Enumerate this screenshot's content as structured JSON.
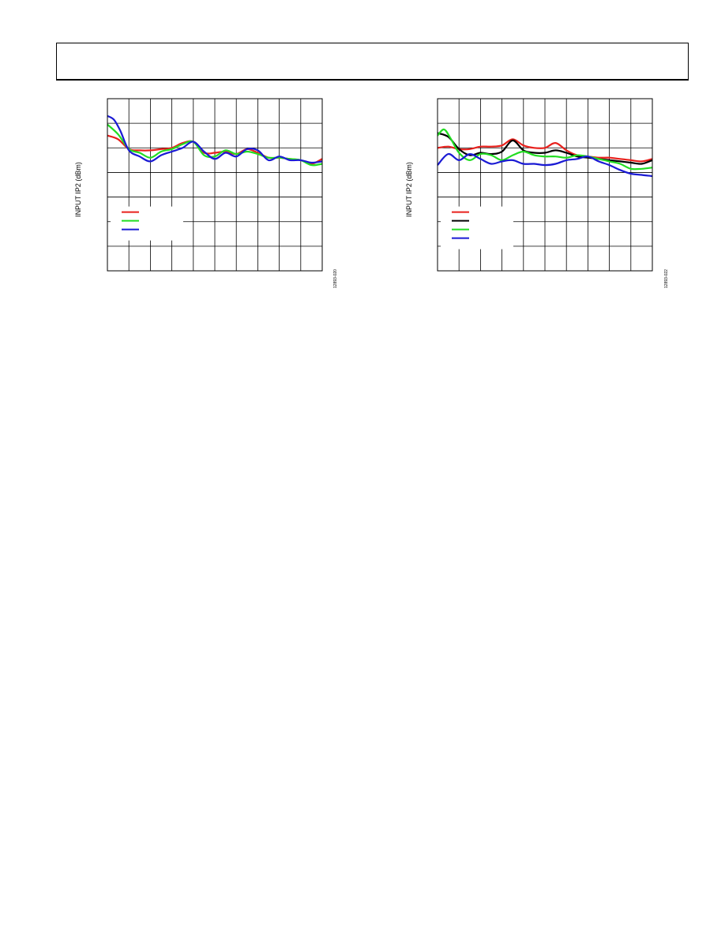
{
  "header": {
    "title": ""
  },
  "chart_data": [
    {
      "type": "line",
      "title": "",
      "xlabel": "",
      "ylabel": "INPUT IP2 (dBm)",
      "figure_code": "12893-020",
      "grid": true,
      "legend_placement": "bottom-left",
      "xlim": [
        0,
        10
      ],
      "ylim": [
        0,
        7
      ],
      "x_divisions": 10,
      "y_divisions": 7,
      "series": [
        {
          "name": "",
          "color": "#e8201c",
          "x": [
            0,
            0.5,
            1,
            1.5,
            2,
            2.5,
            3,
            3.5,
            4,
            4.5,
            5,
            5.5,
            6,
            6.5,
            7,
            7.5,
            8,
            8.5,
            9,
            9.5,
            10
          ],
          "y": [
            5.5,
            5.35,
            4.95,
            4.9,
            4.9,
            4.95,
            5.0,
            5.2,
            5.25,
            4.8,
            4.8,
            4.85,
            4.75,
            4.95,
            4.8,
            4.6,
            4.6,
            4.55,
            4.5,
            4.35,
            4.55
          ]
        },
        {
          "name": "",
          "color": "#22dd22",
          "x": [
            0,
            0.5,
            1,
            1.5,
            2,
            2.5,
            3,
            3.5,
            4,
            4.5,
            5,
            5.5,
            6,
            6.5,
            7,
            7.5,
            8,
            8.5,
            9,
            9.5,
            10
          ],
          "y": [
            5.95,
            5.55,
            4.95,
            4.8,
            4.6,
            4.85,
            4.95,
            5.15,
            5.25,
            4.7,
            4.65,
            4.9,
            4.75,
            4.85,
            4.75,
            4.6,
            4.6,
            4.55,
            4.5,
            4.3,
            4.35
          ]
        },
        {
          "name": "",
          "color": "#1a1ad4",
          "x": [
            0,
            0.3,
            0.6,
            1,
            1.5,
            2,
            2.5,
            3,
            3.5,
            4,
            4.5,
            5,
            5.5,
            6,
            6.5,
            7,
            7.5,
            8,
            8.5,
            9,
            9.5,
            10
          ],
          "y": [
            6.3,
            6.15,
            5.7,
            4.9,
            4.65,
            4.45,
            4.7,
            4.85,
            5.0,
            5.25,
            4.85,
            4.55,
            4.8,
            4.65,
            4.95,
            4.9,
            4.5,
            4.65,
            4.5,
            4.5,
            4.4,
            4.45
          ]
        }
      ]
    },
    {
      "type": "line",
      "title": "",
      "xlabel": "",
      "ylabel": "INPUT IP2 (dBm)",
      "figure_code": "12893-022",
      "grid": true,
      "legend_placement": "bottom-left",
      "xlim": [
        0,
        10
      ],
      "ylim": [
        0,
        7
      ],
      "x_divisions": 10,
      "y_divisions": 7,
      "series": [
        {
          "name": "",
          "color": "#e8201c",
          "x": [
            0,
            0.5,
            1,
            1.5,
            2,
            2.5,
            3,
            3.5,
            4,
            4.5,
            5,
            5.5,
            6,
            6.5,
            7,
            7.5,
            8,
            8.5,
            9,
            9.5,
            10
          ],
          "y": [
            5.0,
            5.05,
            4.95,
            4.95,
            5.05,
            5.05,
            5.1,
            5.35,
            5.1,
            5.0,
            5.0,
            5.2,
            4.9,
            4.7,
            4.65,
            4.6,
            4.6,
            4.55,
            4.5,
            4.45,
            4.55
          ]
        },
        {
          "name": "",
          "color": "#000000",
          "x": [
            0,
            0.5,
            1,
            1.5,
            2,
            2.5,
            3,
            3.5,
            4,
            4.5,
            5,
            5.5,
            6,
            6.5,
            7,
            7.5,
            8,
            8.5,
            9,
            9.5,
            10
          ],
          "y": [
            5.6,
            5.45,
            4.95,
            4.7,
            4.8,
            4.75,
            4.85,
            5.3,
            4.9,
            4.8,
            4.8,
            4.9,
            4.8,
            4.65,
            4.6,
            4.55,
            4.5,
            4.45,
            4.4,
            4.35,
            4.5
          ]
        },
        {
          "name": "",
          "color": "#22dd22",
          "x": [
            0,
            0.3,
            0.6,
            1,
            1.5,
            2,
            2.5,
            3,
            3.5,
            4,
            4.5,
            5,
            5.5,
            6,
            6.5,
            7,
            7.5,
            8,
            8.5,
            9,
            9.5,
            10
          ],
          "y": [
            5.5,
            5.75,
            5.4,
            4.8,
            4.5,
            4.75,
            4.7,
            4.5,
            4.7,
            4.85,
            4.7,
            4.65,
            4.65,
            4.6,
            4.7,
            4.65,
            4.55,
            4.45,
            4.35,
            4.15,
            4.15,
            4.2
          ]
        },
        {
          "name": "",
          "color": "#1a1ad4",
          "x": [
            0,
            0.5,
            1,
            1.5,
            2,
            2.5,
            3,
            3.5,
            4,
            4.5,
            5,
            5.5,
            6,
            6.5,
            7,
            7.5,
            8,
            8.5,
            9,
            9.5,
            10
          ],
          "y": [
            4.3,
            4.75,
            4.5,
            4.75,
            4.55,
            4.35,
            4.45,
            4.5,
            4.35,
            4.35,
            4.3,
            4.35,
            4.5,
            4.55,
            4.65,
            4.45,
            4.3,
            4.1,
            3.95,
            3.9,
            3.85
          ]
        }
      ]
    }
  ]
}
